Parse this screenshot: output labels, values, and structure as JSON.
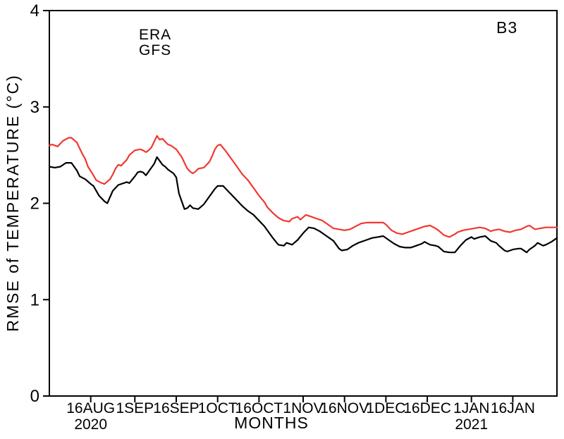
{
  "figure": {
    "panel_label": "B3"
  },
  "chart_data": {
    "type": "line",
    "title": "",
    "xlabel": "MONTHS",
    "ylabel": "RMSE of TEMPERATURE (°C)",
    "ylim": [
      0,
      4
    ],
    "y_ticks": [
      0,
      1,
      2,
      3,
      4
    ],
    "x_range_days": [
      0,
      184
    ],
    "x_axis_note": "day 0 = 1 AUG 2020, day 184 = 1 FEB 2021",
    "grid": false,
    "legend_position": "inside-top-left",
    "x_ticks": [
      {
        "label": "16AUG",
        "day": 15
      },
      {
        "label": "1SEP",
        "day": 31
      },
      {
        "label": "16SEP",
        "day": 46
      },
      {
        "label": "1OCT",
        "day": 61
      },
      {
        "label": "16OCT",
        "day": 76
      },
      {
        "label": "1NOV",
        "day": 92
      },
      {
        "label": "16NOV",
        "day": 107
      },
      {
        "label": "1DEC",
        "day": 122
      },
      {
        "label": "16DEC",
        "day": 137
      },
      {
        "label": "1JAN",
        "day": 153
      },
      {
        "label": "16JAN",
        "day": 168
      }
    ],
    "year_labels": [
      {
        "label": "2020",
        "day": 15
      },
      {
        "label": "2021",
        "day": 153
      }
    ],
    "colors": {
      "era": "#000000",
      "gfs": "#f03830"
    },
    "series": [
      {
        "name": "ERA",
        "color_key": "era",
        "points": [
          [
            0,
            2.38
          ],
          [
            2,
            2.37
          ],
          [
            4,
            2.38
          ],
          [
            6,
            2.42
          ],
          [
            8,
            2.42
          ],
          [
            10,
            2.34
          ],
          [
            11,
            2.28
          ],
          [
            13,
            2.25
          ],
          [
            15,
            2.2
          ],
          [
            16,
            2.18
          ],
          [
            18,
            2.08
          ],
          [
            20,
            2.02
          ],
          [
            21,
            2.0
          ],
          [
            23,
            2.13
          ],
          [
            25,
            2.19
          ],
          [
            27,
            2.21
          ],
          [
            28,
            2.22
          ],
          [
            29,
            2.21
          ],
          [
            31,
            2.28
          ],
          [
            32,
            2.32
          ],
          [
            33,
            2.33
          ],
          [
            34,
            2.32
          ],
          [
            35,
            2.29
          ],
          [
            36,
            2.33
          ],
          [
            38,
            2.41
          ],
          [
            39,
            2.48
          ],
          [
            40,
            2.44
          ],
          [
            41,
            2.4
          ],
          [
            42,
            2.38
          ],
          [
            43,
            2.35
          ],
          [
            45,
            2.31
          ],
          [
            46,
            2.27
          ],
          [
            47,
            2.1
          ],
          [
            49,
            1.94
          ],
          [
            50,
            1.95
          ],
          [
            51,
            1.98
          ],
          [
            52,
            1.95
          ],
          [
            54,
            1.94
          ],
          [
            56,
            1.99
          ],
          [
            58,
            2.07
          ],
          [
            60,
            2.15
          ],
          [
            61,
            2.18
          ],
          [
            63,
            2.18
          ],
          [
            65,
            2.12
          ],
          [
            66,
            2.09
          ],
          [
            68,
            2.03
          ],
          [
            70,
            1.97
          ],
          [
            72,
            1.92
          ],
          [
            74,
            1.88
          ],
          [
            76,
            1.82
          ],
          [
            78,
            1.76
          ],
          [
            79,
            1.72
          ],
          [
            81,
            1.64
          ],
          [
            83,
            1.57
          ],
          [
            85,
            1.56
          ],
          [
            86,
            1.59
          ],
          [
            88,
            1.57
          ],
          [
            90,
            1.62
          ],
          [
            92,
            1.69
          ],
          [
            94,
            1.75
          ],
          [
            96,
            1.74
          ],
          [
            98,
            1.71
          ],
          [
            100,
            1.67
          ],
          [
            103,
            1.61
          ],
          [
            105,
            1.53
          ],
          [
            106,
            1.51
          ],
          [
            108,
            1.52
          ],
          [
            110,
            1.56
          ],
          [
            112,
            1.59
          ],
          [
            115,
            1.62
          ],
          [
            117,
            1.64
          ],
          [
            119,
            1.65
          ],
          [
            121,
            1.66
          ],
          [
            123,
            1.62
          ],
          [
            125,
            1.58
          ],
          [
            127,
            1.55
          ],
          [
            129,
            1.54
          ],
          [
            131,
            1.54
          ],
          [
            133,
            1.56
          ],
          [
            135,
            1.58
          ],
          [
            136,
            1.6
          ],
          [
            138,
            1.57
          ],
          [
            140,
            1.56
          ],
          [
            141,
            1.55
          ],
          [
            143,
            1.5
          ],
          [
            145,
            1.49
          ],
          [
            147,
            1.49
          ],
          [
            149,
            1.56
          ],
          [
            151,
            1.62
          ],
          [
            153,
            1.65
          ],
          [
            154,
            1.63
          ],
          [
            156,
            1.65
          ],
          [
            158,
            1.66
          ],
          [
            160,
            1.61
          ],
          [
            162,
            1.59
          ],
          [
            163,
            1.56
          ],
          [
            165,
            1.51
          ],
          [
            166,
            1.5
          ],
          [
            168,
            1.52
          ],
          [
            170,
            1.53
          ],
          [
            171,
            1.53
          ],
          [
            173,
            1.49
          ],
          [
            174,
            1.52
          ],
          [
            176,
            1.56
          ],
          [
            177,
            1.59
          ],
          [
            179,
            1.56
          ],
          [
            180,
            1.57
          ],
          [
            182,
            1.6
          ],
          [
            184,
            1.64
          ]
        ]
      },
      {
        "name": "GFS",
        "color_key": "gfs",
        "points": [
          [
            0,
            2.6
          ],
          [
            1,
            2.61
          ],
          [
            3,
            2.59
          ],
          [
            5,
            2.65
          ],
          [
            7,
            2.68
          ],
          [
            8,
            2.68
          ],
          [
            10,
            2.63
          ],
          [
            11,
            2.57
          ],
          [
            12,
            2.51
          ],
          [
            13,
            2.46
          ],
          [
            14,
            2.38
          ],
          [
            16,
            2.29
          ],
          [
            17,
            2.24
          ],
          [
            19,
            2.21
          ],
          [
            20,
            2.2
          ],
          [
            22,
            2.25
          ],
          [
            23,
            2.3
          ],
          [
            24,
            2.36
          ],
          [
            25,
            2.4
          ],
          [
            26,
            2.39
          ],
          [
            28,
            2.45
          ],
          [
            29,
            2.5
          ],
          [
            31,
            2.55
          ],
          [
            33,
            2.56
          ],
          [
            34,
            2.55
          ],
          [
            35,
            2.53
          ],
          [
            36,
            2.55
          ],
          [
            37,
            2.58
          ],
          [
            38,
            2.64
          ],
          [
            39,
            2.7
          ],
          [
            40,
            2.66
          ],
          [
            41,
            2.67
          ],
          [
            42,
            2.64
          ],
          [
            43,
            2.61
          ],
          [
            44,
            2.6
          ],
          [
            46,
            2.56
          ],
          [
            47,
            2.52
          ],
          [
            48,
            2.48
          ],
          [
            49,
            2.42
          ],
          [
            50,
            2.36
          ],
          [
            51,
            2.33
          ],
          [
            52,
            2.31
          ],
          [
            53,
            2.33
          ],
          [
            54,
            2.36
          ],
          [
            56,
            2.37
          ],
          [
            58,
            2.43
          ],
          [
            59,
            2.49
          ],
          [
            60,
            2.56
          ],
          [
            61,
            2.6
          ],
          [
            62,
            2.61
          ],
          [
            64,
            2.54
          ],
          [
            66,
            2.46
          ],
          [
            68,
            2.38
          ],
          [
            70,
            2.3
          ],
          [
            72,
            2.24
          ],
          [
            74,
            2.16
          ],
          [
            76,
            2.08
          ],
          [
            78,
            2.01
          ],
          [
            79,
            1.96
          ],
          [
            81,
            1.9
          ],
          [
            83,
            1.85
          ],
          [
            85,
            1.82
          ],
          [
            87,
            1.81
          ],
          [
            88,
            1.84
          ],
          [
            90,
            1.86
          ],
          [
            91,
            1.83
          ],
          [
            93,
            1.88
          ],
          [
            95,
            1.86
          ],
          [
            97,
            1.84
          ],
          [
            99,
            1.82
          ],
          [
            101,
            1.78
          ],
          [
            103,
            1.74
          ],
          [
            105,
            1.73
          ],
          [
            107,
            1.72
          ],
          [
            109,
            1.73
          ],
          [
            111,
            1.76
          ],
          [
            113,
            1.79
          ],
          [
            115,
            1.8
          ],
          [
            117,
            1.8
          ],
          [
            119,
            1.8
          ],
          [
            121,
            1.8
          ],
          [
            122,
            1.78
          ],
          [
            124,
            1.72
          ],
          [
            126,
            1.69
          ],
          [
            128,
            1.68
          ],
          [
            130,
            1.7
          ],
          [
            132,
            1.72
          ],
          [
            134,
            1.74
          ],
          [
            136,
            1.76
          ],
          [
            138,
            1.77
          ],
          [
            140,
            1.74
          ],
          [
            141,
            1.72
          ],
          [
            143,
            1.67
          ],
          [
            145,
            1.65
          ],
          [
            147,
            1.68
          ],
          [
            148,
            1.7
          ],
          [
            150,
            1.72
          ],
          [
            152,
            1.73
          ],
          [
            154,
            1.74
          ],
          [
            156,
            1.75
          ],
          [
            158,
            1.74
          ],
          [
            160,
            1.71
          ],
          [
            161,
            1.72
          ],
          [
            163,
            1.73
          ],
          [
            165,
            1.71
          ],
          [
            167,
            1.7
          ],
          [
            169,
            1.72
          ],
          [
            171,
            1.73
          ],
          [
            173,
            1.76
          ],
          [
            174,
            1.77
          ],
          [
            176,
            1.73
          ],
          [
            178,
            1.74
          ],
          [
            180,
            1.75
          ],
          [
            182,
            1.75
          ],
          [
            184,
            1.75
          ]
        ]
      }
    ]
  }
}
